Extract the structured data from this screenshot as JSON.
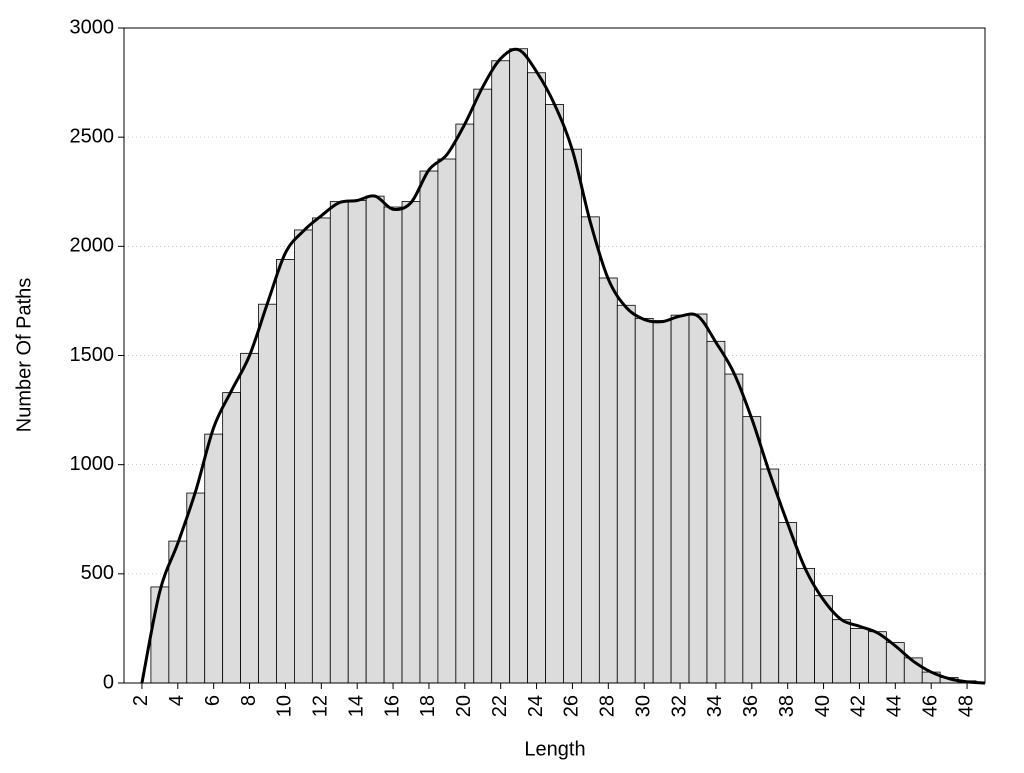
{
  "chart_data": {
    "type": "histogram",
    "xlabel": "Length",
    "ylabel": "Number Of Paths",
    "xlim": [
      1,
      49
    ],
    "ylim": [
      0,
      3000
    ],
    "xticks": [
      2,
      4,
      6,
      8,
      10,
      12,
      14,
      16,
      18,
      20,
      22,
      24,
      26,
      28,
      30,
      32,
      34,
      36,
      38,
      40,
      42,
      44,
      46,
      48
    ],
    "yticks": [
      0,
      500,
      1000,
      1500,
      2000,
      2500,
      3000
    ],
    "grid": true,
    "series": [
      {
        "type": "bar",
        "color": "#dcdcdc",
        "x": [
          3,
          4,
          5,
          6,
          7,
          8,
          9,
          10,
          11,
          12,
          13,
          14,
          15,
          16,
          17,
          18,
          19,
          20,
          21,
          22,
          23,
          24,
          25,
          26,
          27,
          28,
          29,
          30,
          31,
          32,
          33,
          34,
          35,
          36,
          37,
          38,
          39,
          40,
          41,
          42,
          43,
          44,
          45,
          46,
          47,
          48
        ],
        "values": [
          440,
          650,
          870,
          1140,
          1330,
          1510,
          1735,
          1940,
          2075,
          2130,
          2205,
          2210,
          2230,
          2180,
          2205,
          2345,
          2400,
          2560,
          2720,
          2850,
          2905,
          2795,
          2650,
          2445,
          2135,
          1855,
          1730,
          1670,
          1660,
          1685,
          1690,
          1565,
          1415,
          1220,
          980,
          735,
          525,
          400,
          290,
          250,
          235,
          185,
          115,
          50,
          25,
          10
        ]
      },
      {
        "type": "line",
        "color": "#000000",
        "x": [
          2,
          3,
          4,
          5,
          6,
          7,
          8,
          9,
          10,
          11,
          12,
          13,
          14,
          15,
          16,
          17,
          18,
          19,
          20,
          21,
          22,
          23,
          24,
          25,
          26,
          27,
          28,
          29,
          30,
          31,
          32,
          33,
          34,
          35,
          36,
          37,
          38,
          39,
          40,
          41,
          42,
          43,
          44,
          45,
          46,
          47,
          48,
          49
        ],
        "values": [
          0,
          420,
          640,
          880,
          1170,
          1340,
          1500,
          1740,
          1970,
          2070,
          2140,
          2200,
          2210,
          2230,
          2170,
          2200,
          2350,
          2420,
          2560,
          2730,
          2860,
          2900,
          2800,
          2650,
          2440,
          2110,
          1850,
          1720,
          1665,
          1655,
          1680,
          1680,
          1560,
          1420,
          1210,
          960,
          730,
          520,
          380,
          290,
          260,
          230,
          170,
          100,
          50,
          20,
          5,
          0
        ]
      }
    ]
  }
}
